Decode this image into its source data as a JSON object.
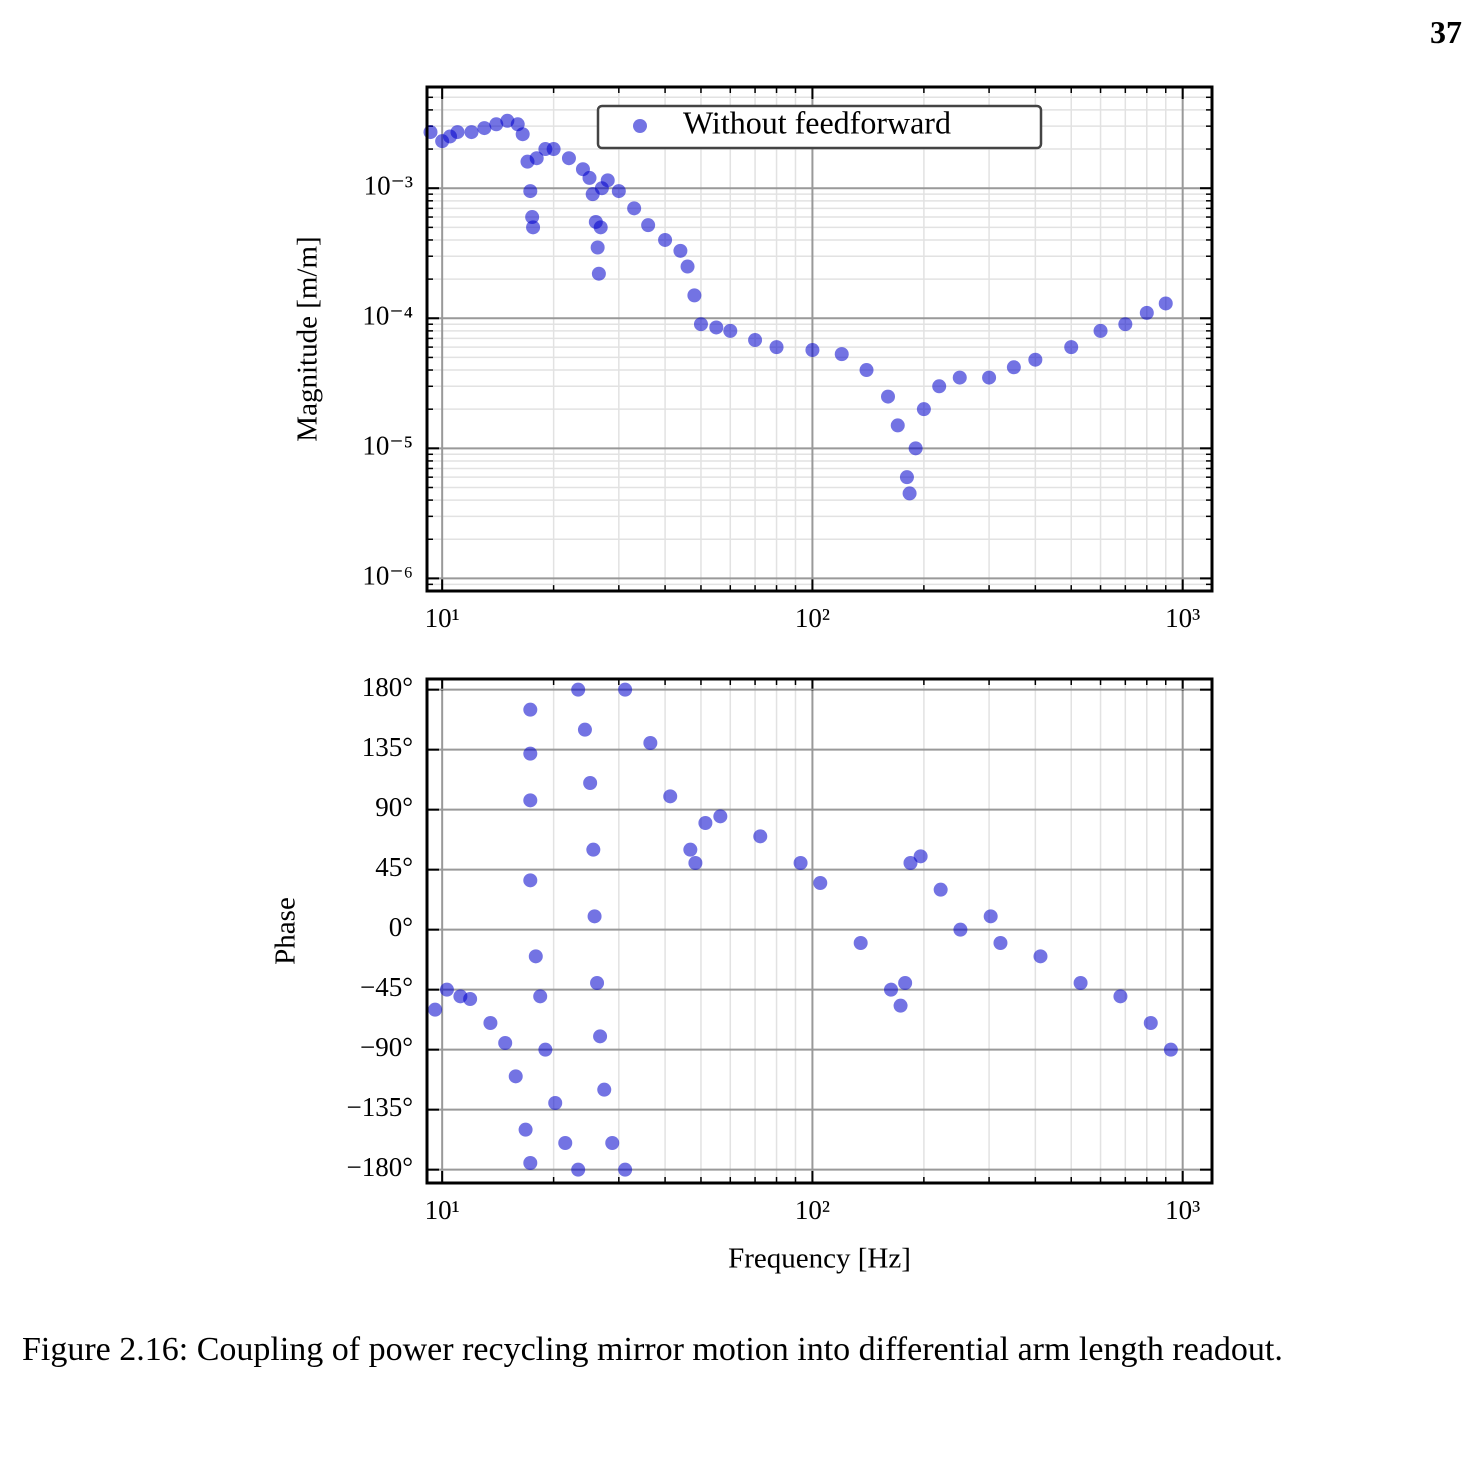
{
  "page_number": "37",
  "chart_data": [
    {
      "type": "scatter",
      "ylabel": "Magnitude [m/m]",
      "xscale": "log",
      "yscale": "log",
      "grid": true,
      "minor_grid": true,
      "legend": "upper center",
      "xlim": [
        9.1,
        1200
      ],
      "ylim": [
        8e-07,
        0.006
      ],
      "xticks": [
        {
          "value": 10,
          "label": "10¹"
        },
        {
          "value": 100,
          "label": "10²"
        },
        {
          "value": 1000,
          "label": "10³"
        }
      ],
      "yticks": [
        {
          "value": 1e-06,
          "label": "10⁻⁶"
        },
        {
          "value": 1e-05,
          "label": "10⁻⁵"
        },
        {
          "value": 0.0001,
          "label": "10⁻⁴"
        },
        {
          "value": 0.001,
          "label": "10⁻³"
        }
      ],
      "series": [
        {
          "name": "Without feedforward",
          "color": "#0000cc",
          "x": [
            9.3,
            10,
            10.5,
            11,
            12,
            13,
            14,
            15,
            16,
            16.5,
            17,
            17.3,
            17.5,
            17.6,
            18,
            19,
            20,
            22,
            24,
            25,
            25.5,
            26,
            26.3,
            26.5,
            26.8,
            27,
            28,
            30,
            33,
            36,
            40,
            44,
            46,
            48,
            50,
            55,
            60,
            70,
            80,
            100,
            120,
            140,
            160,
            170,
            180,
            183,
            190,
            200,
            220,
            250,
            300,
            350,
            400,
            500,
            600,
            700,
            800,
            900
          ],
          "values": [
            0.0027,
            0.0023,
            0.0025,
            0.0027,
            0.0027,
            0.0029,
            0.0031,
            0.0033,
            0.0031,
            0.0026,
            0.0016,
            0.00095,
            0.0006,
            0.0005,
            0.0017,
            0.002,
            0.002,
            0.0017,
            0.0014,
            0.0012,
            0.0009,
            0.00055,
            0.00035,
            0.00022,
            0.0005,
            0.001,
            0.00115,
            0.00095,
            0.0007,
            0.00052,
            0.0004,
            0.00033,
            0.00025,
            0.00015,
            9e-05,
            8.5e-05,
            8e-05,
            6.8e-05,
            6e-05,
            5.7e-05,
            5.3e-05,
            4e-05,
            2.5e-05,
            1.5e-05,
            6e-06,
            4.5e-06,
            1e-05,
            2e-05,
            3e-05,
            3.5e-05,
            3.5e-05,
            4.2e-05,
            4.8e-05,
            6e-05,
            8e-05,
            9e-05,
            0.00011,
            0.00013
          ]
        }
      ]
    },
    {
      "type": "scatter",
      "xlabel": "Frequency [Hz]",
      "ylabel": "Phase",
      "xscale": "log",
      "yscale": "linear",
      "grid": true,
      "minor_grid": true,
      "xlim": [
        9.1,
        1200
      ],
      "ylim": [
        -190,
        188
      ],
      "xticks": [
        {
          "value": 10,
          "label": "10¹"
        },
        {
          "value": 100,
          "label": "10²"
        },
        {
          "value": 1000,
          "label": "10³"
        }
      ],
      "yticks": [
        {
          "value": -180,
          "label": "−180°"
        },
        {
          "value": -135,
          "label": "−135°"
        },
        {
          "value": -90,
          "label": "−90°"
        },
        {
          "value": -45,
          "label": "−45°"
        },
        {
          "value": 0,
          "label": "0°"
        },
        {
          "value": 45,
          "label": "45°"
        },
        {
          "value": 90,
          "label": "90°"
        },
        {
          "value": 135,
          "label": "135°"
        },
        {
          "value": 180,
          "label": "180°"
        }
      ],
      "series": [
        {
          "color": "#0000cc",
          "x": [
            9.57,
            10.3,
            11.2,
            11.9,
            13.5,
            14.8,
            15.8,
            16.8,
            17.3,
            17.3,
            17.3,
            17.3,
            17.3,
            17.9,
            18.4,
            19.0,
            20.2,
            21.5,
            23.3,
            23.3,
            24.3,
            25.1,
            25.6,
            25.8,
            26.2,
            26.7,
            27.4,
            28.8,
            31.2,
            31.2,
            36.5,
            41.3,
            46.8,
            48.3,
            51.4,
            56.4,
            72.3,
            92.9,
            105,
            135,
            163,
            173,
            178,
            184,
            196,
            222,
            251,
            303,
            322,
            413,
            530,
            679,
            820,
            929
          ],
          "values": [
            -60,
            -45,
            -50,
            -52,
            -70,
            -85,
            -110,
            -150,
            -175,
            165,
            132,
            97,
            37,
            -20,
            -50,
            -90,
            -130,
            -160,
            -180,
            180,
            150,
            110,
            60,
            10,
            -40,
            -80,
            -120,
            -160,
            -180,
            180,
            140,
            100,
            60,
            50,
            80,
            85,
            70,
            50,
            35,
            -10,
            -45,
            -57,
            -40,
            50,
            55,
            30,
            0,
            10,
            -10,
            -20,
            -40,
            -50,
            -70,
            -90
          ]
        }
      ]
    }
  ],
  "caption": "Figure 2.16: Coupling of power recycling mirror motion into differential arm length readout."
}
